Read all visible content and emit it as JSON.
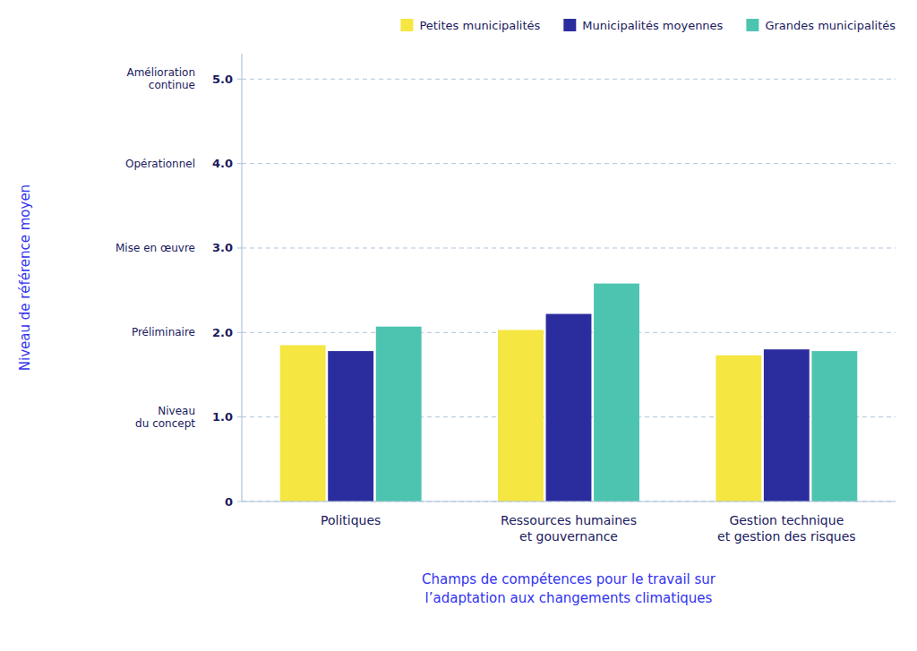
{
  "chart_data": {
    "type": "bar",
    "categories": [
      "Politiques",
      "Ressources humaines\net gouvernance",
      "Gestion technique\net gestion des risques"
    ],
    "series": [
      {
        "name": "Petites municipalités",
        "color": "#F5E642",
        "values": [
          1.85,
          2.03,
          1.73
        ]
      },
      {
        "name": "Municipalités moyennes",
        "color": "#2B2D9E",
        "values": [
          1.78,
          2.22,
          1.8
        ]
      },
      {
        "name": "Grandes municipalités",
        "color": "#4DC4B0",
        "values": [
          2.07,
          2.58,
          1.78
        ]
      }
    ],
    "ylim": [
      0,
      5.3
    ],
    "yticks": [
      0,
      {
        "value": 1.0,
        "label": "1.0"
      },
      {
        "value": 2.0,
        "label": "2.0"
      },
      {
        "value": 3.0,
        "label": "3.0"
      },
      {
        "value": 4.0,
        "label": "4.0"
      },
      {
        "value": 5.0,
        "label": "5.0"
      }
    ],
    "annotations": [
      {
        "text": "Niveau\ndu concept",
        "y": 1.0
      },
      {
        "text": "Préliminaire",
        "y": 2.0
      },
      {
        "text": "Mise en œuvre",
        "y": 3.0
      },
      {
        "text": "Opérationnel",
        "y": 4.0
      },
      {
        "text": "Amélioration\ncontinue",
        "y": 5.0
      }
    ],
    "ylabel": "Niveau de référence moyen",
    "xlabel": "Champs de compétences pour le travail sur\nl’adaptation aux changements climatiques",
    "grid": true,
    "legend": "upper right"
  }
}
